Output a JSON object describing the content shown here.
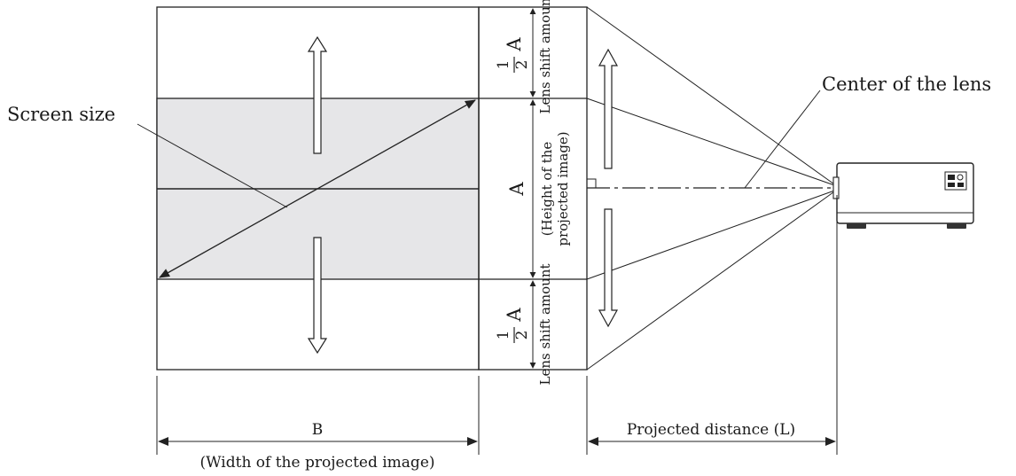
{
  "labels": {
    "screen_size": "Screen size",
    "center_of_lens": "Center of the lens",
    "lens_shift_top": "Lens shift amount",
    "lens_shift_bottom": "Lens shift amount",
    "half_a_top_num": "1",
    "half_a_top_den": "2",
    "half_a_top_var": "A",
    "half_a_bottom_num": "1",
    "half_a_bottom_den": "2",
    "half_a_bottom_var": "A",
    "height_var": "A",
    "height_desc_line1": "(Height of the",
    "height_desc_line2": "projected image)",
    "width_var": "B",
    "width_desc": "(Width of the projected image)",
    "projected_distance": "Projected distance (L)"
  },
  "colors": {
    "screen_fill": "#e6e6e8",
    "line": "#222222"
  }
}
